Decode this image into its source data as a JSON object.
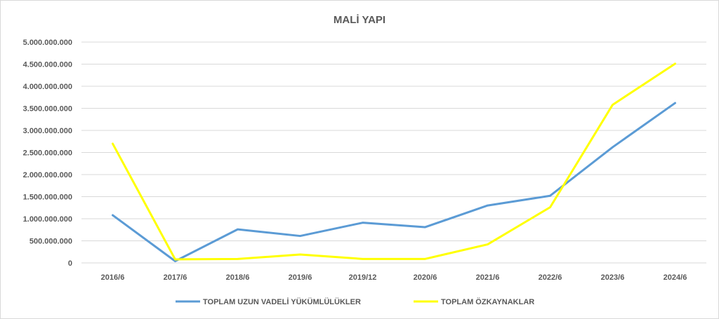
{
  "chart_data": {
    "type": "line",
    "title": "MALİ YAPI",
    "xlabel": "",
    "ylabel": "",
    "categories": [
      "2016/6",
      "2017/6",
      "2018/6",
      "2019/6",
      "2019/12",
      "2020/6",
      "2021/6",
      "2022/6",
      "2023/6",
      "2024/6"
    ],
    "y_ticks": [
      "0",
      "500.000.000",
      "1.000.000.000",
      "1.500.000.000",
      "2.000.000.000",
      "2.500.000.000",
      "3.000.000.000",
      "3.500.000.000",
      "4.000.000.000",
      "4.500.000.000",
      "5.000.000.000"
    ],
    "ylim": [
      0,
      5000000000
    ],
    "grid": true,
    "legend_position": "bottom",
    "series": [
      {
        "name": "TOPLAM UZUN VADELİ YÜKÜMLÜLÜKLER",
        "color": "#5b9bd5",
        "values": [
          1080000000,
          40000000,
          760000000,
          610000000,
          910000000,
          810000000,
          1300000000,
          1520000000,
          2620000000,
          3620000000
        ]
      },
      {
        "name": "TOPLAM ÖZKAYNAKLAR",
        "color": "#ffff00",
        "values": [
          2700000000,
          80000000,
          90000000,
          190000000,
          90000000,
          90000000,
          420000000,
          1260000000,
          3580000000,
          4510000000
        ]
      }
    ]
  }
}
